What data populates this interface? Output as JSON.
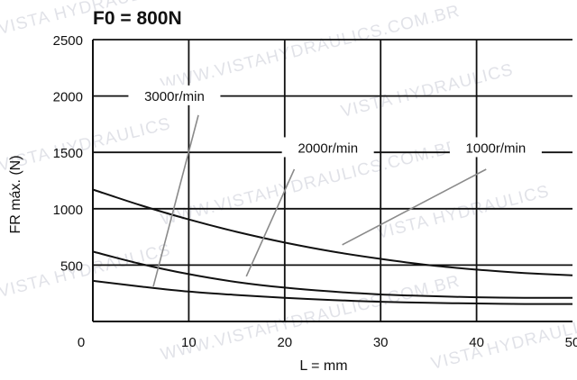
{
  "chart_data": {
    "type": "line",
    "title": "F0 = 800N",
    "xlabel": "L = mm",
    "ylabel": "FR máx. (N)",
    "xlim": [
      0,
      50
    ],
    "ylim": [
      0,
      2500
    ],
    "x_ticks": [
      0,
      10,
      20,
      30,
      40,
      50
    ],
    "y_ticks": [
      500,
      1000,
      1500,
      2000,
      2500
    ],
    "grid": true,
    "series": [
      {
        "name": "1000r/min",
        "x": [
          0,
          5,
          10,
          15,
          20,
          25,
          30,
          35,
          40,
          45,
          50
        ],
        "y": [
          1170,
          1030,
          905,
          795,
          700,
          620,
          555,
          500,
          460,
          430,
          410
        ]
      },
      {
        "name": "2000r/min",
        "x": [
          0,
          5,
          10,
          15,
          20,
          25,
          30,
          35,
          40,
          45,
          50
        ],
        "y": [
          620,
          510,
          420,
          350,
          300,
          265,
          240,
          225,
          215,
          210,
          210
        ]
      },
      {
        "name": "3000r/min",
        "x": [
          0,
          5,
          10,
          15,
          20,
          25,
          30,
          35,
          40,
          45,
          50
        ],
        "y": [
          360,
          310,
          265,
          235,
          210,
          190,
          175,
          165,
          160,
          155,
          155
        ]
      }
    ],
    "annotations": [
      {
        "text": "3000r/min",
        "series": "3000r/min",
        "label_at": [
          8.5,
          1990
        ],
        "peak": [
          11,
          1830
        ],
        "tail": [
          6.3,
          310
        ]
      },
      {
        "text": "2000r/min",
        "series": "2000r/min",
        "label_at": [
          24.5,
          1530
        ],
        "peak": [
          21,
          1350
        ],
        "tail": [
          16,
          400
        ]
      },
      {
        "text": "1000r/min",
        "series": "1000r/min",
        "label_at": [
          42,
          1530
        ],
        "peak": [
          41,
          1350
        ],
        "tail": [
          26,
          680
        ]
      }
    ],
    "watermarks": [
      "VISTA HYDRAULICS",
      "WWW.VISTAHYDRAULICS.COM.BR"
    ]
  }
}
